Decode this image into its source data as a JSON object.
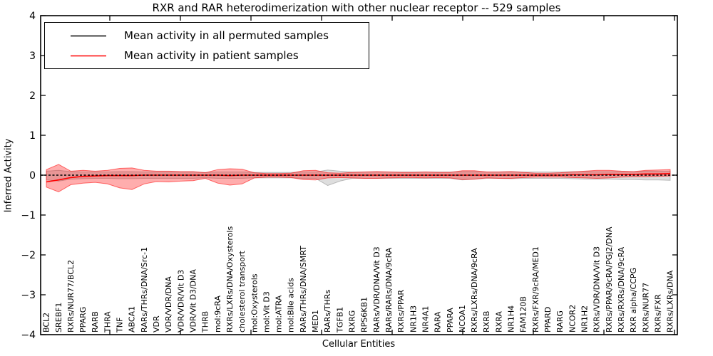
{
  "chart_data": {
    "type": "line",
    "title": "RXR and RAR heterodimerization with other nuclear receptor -- 529 samples",
    "xlabel": "Cellular Entities",
    "ylabel": "Inferred Activity",
    "ylim": [
      -4,
      4
    ],
    "yticks": [
      4,
      3,
      2,
      1,
      0,
      -1,
      -2,
      -3,
      -4
    ],
    "grid": false,
    "legend_position": "upper left",
    "categories": [
      "BCL2",
      "SREBF1",
      "RXRs/NUR77/BCL2",
      "PPARG",
      "RARB",
      "THRA",
      "TNF",
      "ABCA1",
      "RARs/THRs/DNA/Src-1",
      "VDR",
      "VDR/VDR/DNA",
      "VDR/VDR/Vit D3",
      "VDR/Vit D3/DNA",
      "THRB",
      "mol:9cRA",
      "RXRs/LXRs/DNA/Oxysterols",
      "cholesterol transport",
      "mol:Oxysterols",
      "mol:Vit D3",
      "mol:ATRA",
      "mol:Bile acids",
      "RARs/THRs/DNA/SMRT",
      "MED1",
      "RARs/THRs",
      "TGFB1",
      "RXRG",
      "RPS6KB1",
      "RARs/VDR/DNA/Vit D3",
      "RARs/RARs/DNA/9cRA",
      "RXRs/PPAR",
      "NR1H3",
      "NR4A1",
      "RARA",
      "PPARA",
      "NCOA1",
      "RXRs/LXRs/DNA/9cRA",
      "RXRB",
      "RXRA",
      "NR1H4",
      "FAM120B",
      "RXRs/FXR/9cRA/MED1",
      "PPARD",
      "RARG",
      "NCOR2",
      "NR1H2",
      "RXRs/VDR/DNA/Vit D3",
      "RXRs/PPAR/9cRA/PGJ2/DNA",
      "RXRs/RXRs/DNA/9cRA",
      "RXR alpha/CCPG",
      "RXRs/NUR77",
      "RXRs/FXR",
      "RXRs/LXRs/DNA"
    ],
    "series": [
      {
        "name": "Mean activity in all permuted samples",
        "color": "#000000",
        "style": "dashed",
        "values": [
          0,
          0,
          0,
          0,
          0,
          0,
          0,
          0,
          0,
          0,
          0,
          0,
          0,
          0,
          0,
          0,
          0,
          0,
          0,
          0,
          0,
          0,
          0,
          0,
          0,
          0,
          0,
          0,
          0,
          0,
          0,
          0,
          0,
          0,
          0,
          0,
          0,
          0,
          0,
          0,
          0,
          0,
          0,
          0,
          0,
          0,
          0,
          0,
          0,
          0,
          0,
          0
        ]
      },
      {
        "name": "Mean activity in patient samples",
        "color": "#ff0000",
        "style": "solid",
        "values": [
          -0.17,
          -0.12,
          -0.06,
          -0.03,
          -0.02,
          -0.01,
          -0.01,
          -0.01,
          0,
          0,
          0,
          0,
          0,
          0,
          0,
          -0.01,
          0,
          0,
          0,
          0,
          0,
          0,
          0,
          0,
          0,
          0,
          0,
          0,
          0,
          0,
          0,
          0,
          0,
          0,
          0,
          0,
          0,
          0,
          0,
          0,
          0,
          0,
          0,
          0.01,
          0.01,
          0.01,
          0.02,
          0.02,
          0.02,
          0.03,
          0.03,
          0.04
        ]
      }
    ],
    "bands": [
      {
        "name": "permuted-samples-range",
        "fill": "rgba(0,0,0,0.13)",
        "stroke": "rgba(0,0,0,0.22)",
        "upper": [
          0.1,
          0.12,
          0.09,
          0.08,
          0.08,
          0.08,
          0.09,
          0.09,
          0.08,
          0.08,
          0.08,
          0.08,
          0.08,
          0.07,
          0.08,
          0.08,
          0.08,
          0.07,
          0.07,
          0.07,
          0.07,
          0.08,
          0.08,
          0.13,
          0.1,
          0.08,
          0.08,
          0.08,
          0.08,
          0.08,
          0.08,
          0.08,
          0.08,
          0.08,
          0.09,
          0.09,
          0.08,
          0.08,
          0.09,
          0.08,
          0.08,
          0.08,
          0.08,
          0.09,
          0.09,
          0.09,
          0.09,
          0.09,
          0.09,
          0.1,
          0.1,
          0.1
        ],
        "lower": [
          -0.12,
          -0.15,
          -0.1,
          -0.09,
          -0.08,
          -0.08,
          -0.09,
          -0.09,
          -0.08,
          -0.08,
          -0.08,
          -0.08,
          -0.08,
          -0.07,
          -0.08,
          -0.08,
          -0.08,
          -0.07,
          -0.07,
          -0.07,
          -0.07,
          -0.08,
          -0.08,
          -0.26,
          -0.15,
          -0.08,
          -0.08,
          -0.08,
          -0.08,
          -0.08,
          -0.08,
          -0.08,
          -0.08,
          -0.08,
          -0.12,
          -0.1,
          -0.08,
          -0.08,
          -0.09,
          -0.08,
          -0.08,
          -0.08,
          -0.08,
          -0.09,
          -0.1,
          -0.1,
          -0.1,
          -0.11,
          -0.11,
          -0.12,
          -0.12,
          -0.13
        ]
      },
      {
        "name": "patient-samples-range",
        "fill": "rgba(255,0,0,0.32)",
        "stroke": "rgba(255,0,0,0.55)",
        "upper": [
          0.14,
          0.27,
          0.1,
          0.12,
          0.1,
          0.12,
          0.17,
          0.18,
          0.12,
          0.1,
          0.1,
          0.09,
          0.09,
          0.06,
          0.14,
          0.16,
          0.15,
          0.06,
          0.04,
          0.04,
          0.05,
          0.11,
          0.12,
          0.06,
          0.05,
          0.07,
          0.08,
          0.09,
          0.08,
          0.07,
          0.07,
          0.08,
          0.07,
          0.07,
          0.11,
          0.11,
          0.08,
          0.08,
          0.09,
          0.07,
          0.05,
          0.05,
          0.06,
          0.08,
          0.1,
          0.12,
          0.12,
          0.1,
          0.09,
          0.12,
          0.13,
          0.14
        ],
        "lower": [
          -0.3,
          -0.42,
          -0.24,
          -0.2,
          -0.18,
          -0.22,
          -0.32,
          -0.36,
          -0.22,
          -0.16,
          -0.17,
          -0.15,
          -0.14,
          -0.08,
          -0.2,
          -0.25,
          -0.22,
          -0.07,
          -0.05,
          -0.05,
          -0.06,
          -0.11,
          -0.12,
          -0.07,
          -0.06,
          -0.07,
          -0.08,
          -0.08,
          -0.07,
          -0.06,
          -0.06,
          -0.07,
          -0.06,
          -0.07,
          -0.11,
          -0.1,
          -0.07,
          -0.08,
          -0.08,
          -0.06,
          -0.05,
          -0.05,
          -0.05,
          -0.06,
          -0.07,
          -0.08,
          -0.07,
          -0.05,
          -0.04,
          -0.04,
          -0.03,
          -0.02
        ]
      }
    ]
  },
  "colors": {
    "axis": "#000000",
    "background": "#ffffff",
    "permuted_line": "#000000",
    "patient_line": "#ff0000"
  }
}
